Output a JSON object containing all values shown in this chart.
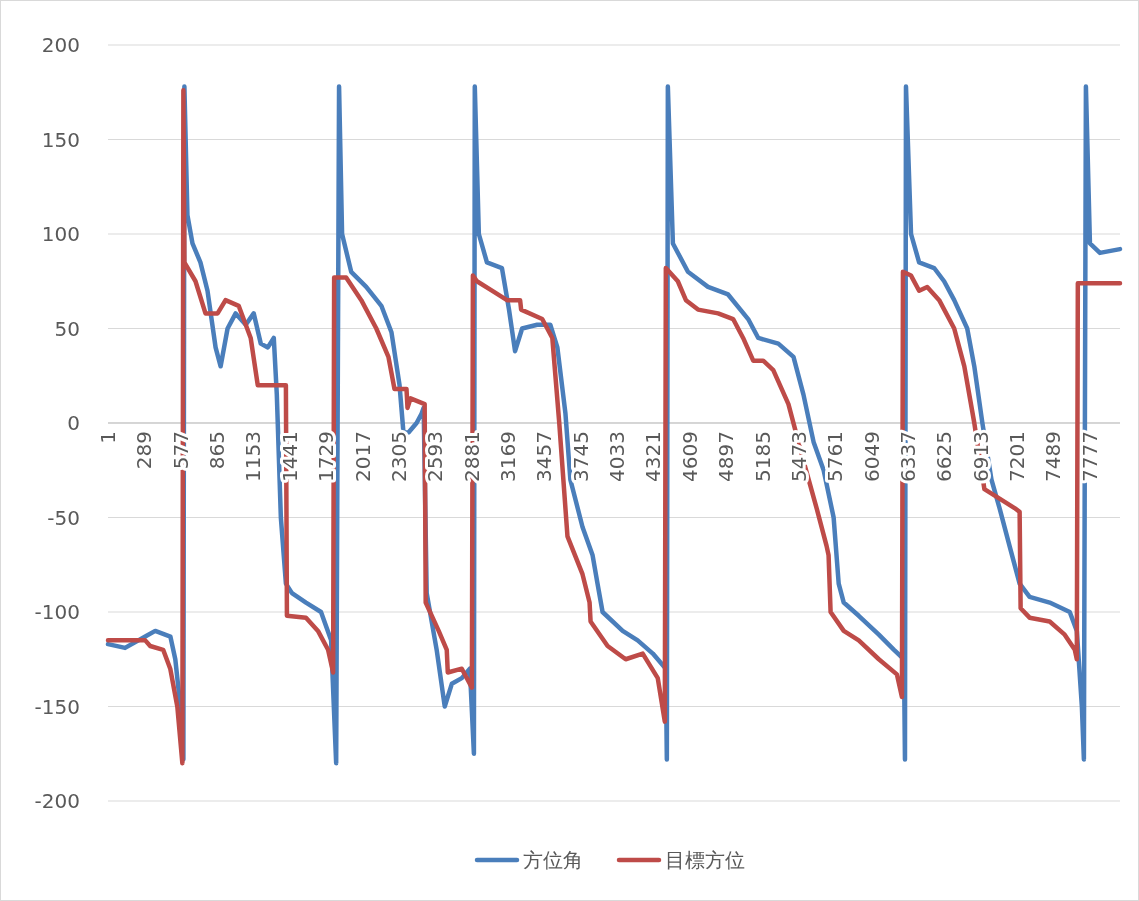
{
  "chart_data": {
    "type": "line",
    "xlim": [
      1,
      8016
    ],
    "xticks": [
      1,
      289,
      577,
      865,
      1153,
      1441,
      1729,
      2017,
      2305,
      2593,
      2881,
      3169,
      3457,
      3745,
      4033,
      4321,
      4609,
      4897,
      5185,
      5473,
      5761,
      6049,
      6337,
      6625,
      6913,
      7201,
      7489,
      7777
    ],
    "ylim": [
      -200,
      200
    ],
    "yticks": [
      -200,
      -150,
      -100,
      -50,
      0,
      50,
      100,
      150,
      200
    ],
    "grid": "y",
    "legend": "bottom",
    "series": [
      {
        "name": "方位角",
        "color": "#4a7ebb",
        "x": [
          1,
          136,
          296,
          375,
          495,
          534,
          574,
          598,
          606,
          630,
          670,
          733,
          789,
          853,
          893,
          948,
          1012,
          1092,
          1155,
          1211,
          1267,
          1314,
          1338,
          1370,
          1410,
          1458,
          1569,
          1688,
          1768,
          1808,
          1831,
          1855,
          1927,
          2046,
          2166,
          2246,
          2310,
          2341,
          2381,
          2445,
          2485,
          2501,
          2525,
          2604,
          2668,
          2724,
          2803,
          2867,
          2899,
          2906,
          2938,
          3002,
          3121,
          3177,
          3225,
          3281,
          3400,
          3504,
          3560,
          3624,
          3663,
          3759,
          3839,
          3878,
          3918,
          4077,
          4196,
          4316,
          4419,
          4427,
          4435,
          4475,
          4594,
          4753,
          4912,
          5071,
          5151,
          5310,
          5430,
          5509,
          5589,
          5669,
          5748,
          5788,
          5828,
          5947,
          6106,
          6226,
          6305,
          6313,
          6321,
          6361,
          6425,
          6544,
          6623,
          6703,
          6806,
          6862,
          6926,
          6998,
          7062,
          7141,
          7221,
          7300,
          7459,
          7618,
          7674,
          7714,
          7730,
          7746,
          7778,
          7857,
          8016
        ],
        "values": [
          -117,
          -119,
          -113,
          -110,
          -113,
          -125,
          -150,
          -178,
          178,
          110,
          95,
          85,
          70,
          40,
          30,
          50,
          58,
          52,
          58,
          42,
          40,
          45,
          15,
          -50,
          -85,
          -90,
          -95,
          -100,
          -115,
          -180,
          178,
          100,
          80,
          72,
          62,
          48,
          20,
          -5,
          -5,
          0,
          5,
          8,
          -90,
          -120,
          -150,
          -138,
          -135,
          -130,
          -175,
          178,
          100,
          85,
          82,
          60,
          38,
          50,
          52,
          52,
          40,
          5,
          -30,
          -55,
          -70,
          -85,
          -100,
          -110,
          -115,
          -122,
          -130,
          -178,
          178,
          95,
          80,
          72,
          68,
          55,
          45,
          42,
          35,
          15,
          -10,
          -25,
          -50,
          -85,
          -95,
          -102,
          -112,
          -120,
          -125,
          -178,
          178,
          100,
          85,
          82,
          75,
          65,
          50,
          30,
          0,
          -30,
          -45,
          -65,
          -85,
          -92,
          -95,
          -100,
          -110,
          -150,
          -178,
          178,
          95,
          90,
          92
        ]
      },
      {
        "name": "目標方位",
        "color": "#be4b48",
        "x": [
          1,
          296,
          335,
          438,
          494,
          550,
          590,
          598,
          606,
          694,
          773,
          869,
          932,
          1036,
          1131,
          1187,
          1410,
          1418,
          1569,
          1664,
          1744,
          1784,
          1792,
          1887,
          2007,
          2126,
          2222,
          2270,
          2365,
          2373,
          2397,
          2509,
          2517,
          2620,
          2684,
          2692,
          2803,
          2883,
          2891,
          2923,
          3042,
          3161,
          3265,
          3273,
          3440,
          3520,
          3575,
          3640,
          3759,
          3815,
          3823,
          3958,
          4101,
          4236,
          4355,
          4411,
          4419,
          4514,
          4578,
          4674,
          4833,
          4952,
          5031,
          5111,
          5190,
          5270,
          5390,
          5509,
          5613,
          5692,
          5708,
          5724,
          5828,
          5947,
          6106,
          6249,
          6289,
          6297,
          6361,
          6425,
          6489,
          6584,
          6703,
          6783,
          6862,
          6942,
          7062,
          7181,
          7221,
          7229,
          7300,
          7459,
          7578,
          7658,
          7674,
          7682,
          8016
        ],
        "values": [
          -115,
          -115,
          -118,
          -120,
          -130,
          -150,
          -180,
          176,
          85,
          75,
          58,
          58,
          65,
          62,
          45,
          20,
          20,
          -102,
          -103,
          -110,
          -120,
          -132,
          77,
          77,
          65,
          50,
          35,
          18,
          18,
          8,
          13,
          10,
          -95,
          -110,
          -120,
          -132,
          -130,
          -140,
          78,
          75,
          70,
          65,
          65,
          60,
          55,
          45,
          0,
          -60,
          -80,
          -95,
          -105,
          -118,
          -125,
          -122,
          -135,
          -158,
          82,
          75,
          65,
          60,
          58,
          55,
          45,
          33,
          33,
          28,
          10,
          -20,
          -45,
          -65,
          -70,
          -100,
          -110,
          -115,
          -125,
          -133,
          -145,
          80,
          78,
          70,
          72,
          65,
          50,
          30,
          0,
          -35,
          -40,
          -45,
          -47,
          -98,
          -103,
          -105,
          -112,
          -120,
          -125,
          74,
          74
        ]
      }
    ]
  }
}
